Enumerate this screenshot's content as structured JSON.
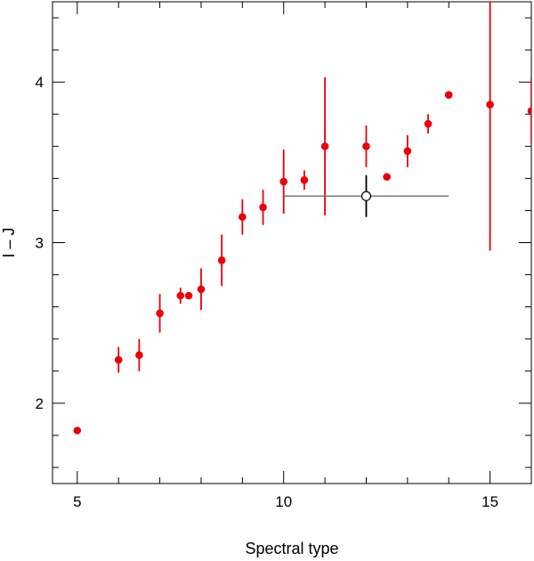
{
  "chart_data": {
    "type": "scatter",
    "title": "",
    "xlabel": "Spectral type",
    "ylabel": "I – J",
    "xlim": [
      4.4,
      16
    ],
    "ylim": [
      1.5,
      4.5
    ],
    "x_ticks": [
      5,
      10,
      15
    ],
    "x_tick_labels": [
      "5",
      "10",
      "15"
    ],
    "y_ticks": [
      2,
      3,
      4
    ],
    "y_tick_labels": [
      "2",
      "3",
      "4"
    ],
    "grid": false,
    "series": [
      {
        "marker": "filled-circle",
        "color": "#e8000b",
        "points": [
          {
            "x": 5.0,
            "y": 1.83,
            "yerr": null
          },
          {
            "x": 6.0,
            "y": 2.27,
            "yerr": [
              0.08,
              0.08
            ]
          },
          {
            "x": 6.5,
            "y": 2.3,
            "yerr": [
              0.1,
              0.1
            ]
          },
          {
            "x": 7.0,
            "y": 2.56,
            "yerr": [
              0.12,
              0.12
            ]
          },
          {
            "x": 7.5,
            "y": 2.67,
            "yerr": [
              0.05,
              0.05
            ]
          },
          {
            "x": 7.7,
            "y": 2.67,
            "yerr": null
          },
          {
            "x": 8.0,
            "y": 2.71,
            "yerr": [
              0.13,
              0.13
            ]
          },
          {
            "x": 8.5,
            "y": 2.89,
            "yerr": [
              0.16,
              0.16
            ]
          },
          {
            "x": 9.0,
            "y": 3.16,
            "yerr": [
              0.11,
              0.11
            ]
          },
          {
            "x": 9.5,
            "y": 3.22,
            "yerr": [
              0.11,
              0.11
            ]
          },
          {
            "x": 10.0,
            "y": 3.38,
            "yerr": [
              0.2,
              0.2
            ]
          },
          {
            "x": 10.5,
            "y": 3.39,
            "yerr": [
              0.06,
              0.06
            ]
          },
          {
            "x": 11.0,
            "y": 3.6,
            "yerr": [
              0.43,
              0.43
            ]
          },
          {
            "x": 12.0,
            "y": 3.6,
            "yerr": [
              0.13,
              0.13
            ]
          },
          {
            "x": 12.5,
            "y": 3.41,
            "yerr": null
          },
          {
            "x": 13.0,
            "y": 3.57,
            "yerr": [
              0.1,
              0.1
            ]
          },
          {
            "x": 13.5,
            "y": 3.74,
            "yerr": [
              0.06,
              0.06
            ]
          },
          {
            "x": 14.0,
            "y": 3.92,
            "yerr": null
          },
          {
            "x": 15.0,
            "y": 3.86,
            "yerr": [
              0.91,
              0.91
            ]
          },
          {
            "x": 16.0,
            "y": 3.82,
            "yerr": [
              0.2,
              0.2
            ]
          }
        ]
      },
      {
        "marker": "open-circle",
        "color": "#000000",
        "line_color": "#6e6e6e",
        "points": [
          {
            "x": 12.0,
            "y": 3.29,
            "xerr": [
              2.0,
              2.0
            ],
            "yerr": [
              0.13,
              0.13
            ]
          }
        ]
      }
    ]
  }
}
